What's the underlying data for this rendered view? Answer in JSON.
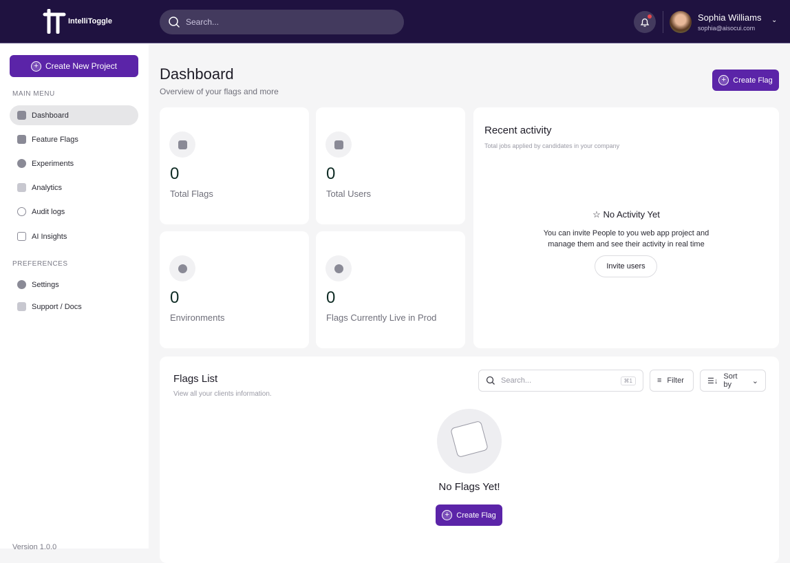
{
  "header": {
    "brand": "IntelliToggle",
    "search_placeholder": "Search...",
    "user_name": "Sophia Williams",
    "user_email": "sophia@aisocui.com"
  },
  "sidebar": {
    "create_project": "Create New Project",
    "main_menu_label": "MAIN MENU",
    "items": [
      {
        "label": "Dashboard",
        "icon": "dashboard-icon",
        "active": true
      },
      {
        "label": "Feature Flags",
        "icon": "flag-icon"
      },
      {
        "label": "Experiments",
        "icon": "experiments-icon"
      },
      {
        "label": "Analytics",
        "icon": "analytics-icon"
      },
      {
        "label": "Audit logs",
        "icon": "clock-icon"
      },
      {
        "label": "AI Insights",
        "icon": "ai-chip-icon"
      }
    ],
    "preferences_label": "PREFERENCES",
    "pref_items": [
      {
        "label": "Settings",
        "icon": "gear-icon"
      },
      {
        "label": "Support / Docs",
        "icon": "help-icon"
      }
    ],
    "version": "Version 1.0.0"
  },
  "main": {
    "title": "Dashboard",
    "subtitle": "Overview of your flags and more",
    "create_flag": "Create Flag",
    "stats": [
      {
        "value": "0",
        "label": "Total Flags"
      },
      {
        "value": "0",
        "label": "Total Users"
      },
      {
        "value": "0",
        "label": "Environments"
      },
      {
        "value": "0",
        "label": "Flags Currently Live in Prod"
      }
    ],
    "activity": {
      "title": "Recent activity",
      "subtitle": "Total jobs applied by candidates in your company",
      "empty_title": "No Activity Yet",
      "empty_text1": "You can invite People to you web app project and",
      "empty_text2": "manage them and see their activity in real time",
      "invite": "Invite users"
    },
    "flags": {
      "title": "Flags List",
      "subtitle": "View all your clients information.",
      "search_placeholder": "Search...",
      "shortcut": "⌘1",
      "filter": "Filter",
      "sort": "Sort by",
      "empty_title": "No Flags Yet!",
      "create_flag": "Create Flag"
    }
  },
  "colors": {
    "header_bg": "#1f1240",
    "accent": "#5b24a8"
  }
}
